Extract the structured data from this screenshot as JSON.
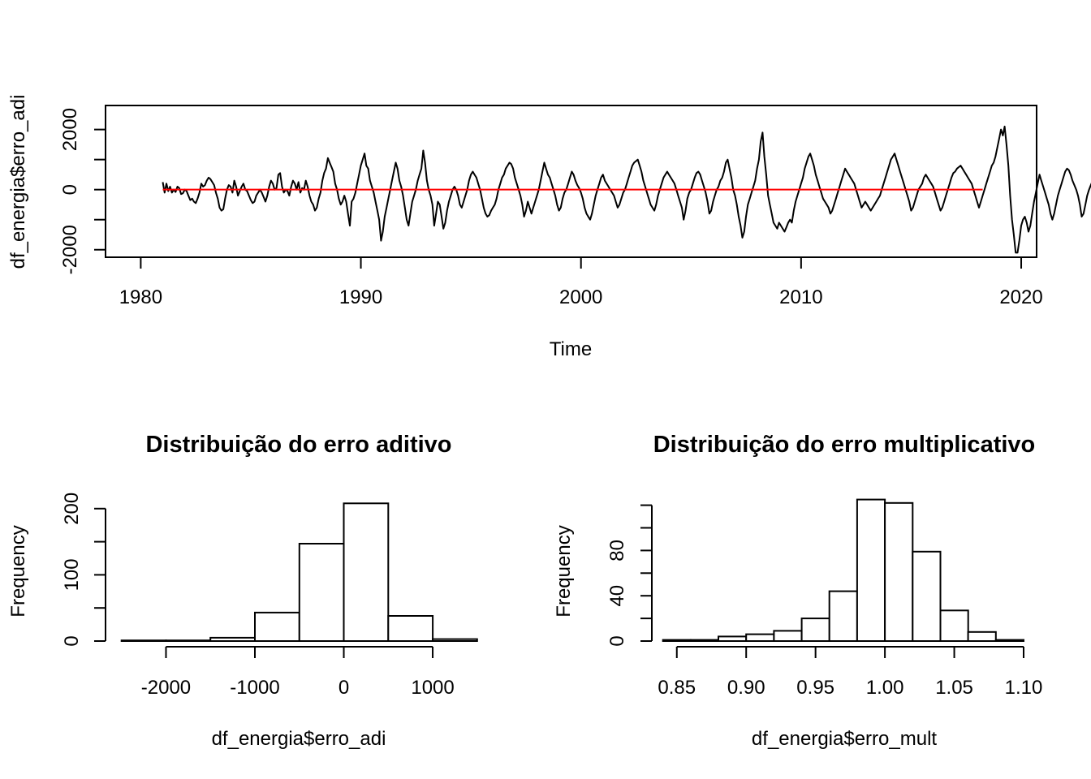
{
  "chart_data": [
    {
      "type": "line",
      "title": "",
      "xlabel": "Time",
      "ylabel": "df_energia$erro_adi",
      "xlim": [
        1978.4,
        2020.7
      ],
      "ylim": [
        -2250,
        2800
      ],
      "x_ticks": [
        1980,
        1990,
        2000,
        2010,
        2020
      ],
      "y_ticks": [
        -2000,
        -1000,
        0,
        1000,
        2000
      ],
      "y_tick_labels": [
        "-2000",
        "",
        "0",
        "",
        "2000"
      ],
      "grid": false,
      "legend": "none",
      "x_start": 1981.0,
      "x_step": 0.08333,
      "series": [
        {
          "color": "#000000",
          "values": [
            250,
            -100,
            200,
            -50,
            100,
            -100,
            0,
            -80,
            100,
            50,
            -150,
            -120,
            0,
            -50,
            -200,
            -350,
            -300,
            -400,
            -450,
            -300,
            -100,
            200,
            100,
            150,
            300,
            400,
            350,
            250,
            150,
            -100,
            -300,
            -600,
            -700,
            -650,
            -300,
            0,
            150,
            100,
            -100,
            300,
            100,
            -200,
            -50,
            100,
            200,
            0,
            -50,
            -200,
            -350,
            -450,
            -400,
            -200,
            -100,
            0,
            -100,
            -250,
            -400,
            -200,
            100,
            300,
            200,
            0,
            50,
            500,
            550,
            100,
            -100,
            0,
            -50,
            -200,
            100,
            300,
            200,
            0,
            250,
            -100,
            50,
            0,
            300,
            100,
            -200,
            -400,
            -500,
            -700,
            -600,
            -300,
            -100,
            300,
            550,
            700,
            1050,
            900,
            750,
            600,
            200,
            0,
            -300,
            -500,
            -400,
            -200,
            -400,
            -800,
            -1200,
            -400,
            -300,
            -100,
            200,
            500,
            800,
            1000,
            1200,
            800,
            700,
            300,
            100,
            -100,
            -400,
            -700,
            -1000,
            -1700,
            -1400,
            -900,
            -600,
            -300,
            0,
            300,
            600,
            900,
            700,
            300,
            100,
            -200,
            -600,
            -1000,
            -1200,
            -800,
            -400,
            -200,
            0,
            300,
            500,
            700,
            1300,
            900,
            300,
            0,
            -200,
            -500,
            -1200,
            -800,
            -400,
            -500,
            -900,
            -1300,
            -1100,
            -700,
            -400,
            -200,
            0,
            100,
            0,
            -200,
            -500,
            -600,
            -400,
            -200,
            0,
            300,
            500,
            600,
            500,
            400,
            200,
            0,
            -300,
            -600,
            -800,
            -900,
            -850,
            -700,
            -600,
            -500,
            -300,
            0,
            200,
            400,
            500,
            700,
            800,
            900,
            850,
            700,
            400,
            200,
            0,
            -200,
            -500,
            -900,
            -700,
            -400,
            -600,
            -800,
            -600,
            -400,
            -200,
            0,
            300,
            600,
            900,
            700,
            500,
            400,
            200,
            0,
            -200,
            -500,
            -700,
            -600,
            -300,
            -100,
            0,
            200,
            400,
            600,
            500,
            300,
            150,
            50,
            -100,
            -300,
            -600,
            -800,
            -900,
            -1000,
            -800,
            -500,
            -200,
            0,
            200,
            400,
            500,
            300,
            200,
            100,
            0,
            -100,
            -200,
            -400,
            -600,
            -500,
            -300,
            -100,
            0,
            200,
            400,
            600,
            800,
            900,
            950,
            1000,
            800,
            600,
            300,
            100,
            -100,
            -300,
            -500,
            -600,
            -700,
            -500,
            -200,
            0,
            200,
            400,
            500,
            600,
            500,
            400,
            300,
            200,
            0,
            -200,
            -400,
            -600,
            -1000,
            -700,
            -300,
            -100,
            0,
            200,
            400,
            550,
            600,
            500,
            300,
            100,
            -100,
            -400,
            -800,
            -700,
            -400,
            -200,
            0,
            100,
            300,
            400,
            600,
            900,
            1000,
            700,
            400,
            0,
            -200,
            -500,
            -900,
            -1200,
            -1600,
            -1400,
            -900,
            -500,
            -300,
            -100,
            100,
            300,
            700,
            1000,
            1600,
            1900,
            1100,
            500,
            -200,
            -500,
            -800,
            -1100,
            -1200,
            -1300,
            -1100,
            -1200,
            -1300,
            -1400,
            -1250,
            -1100,
            -1000,
            -1100,
            -700,
            -400,
            -200,
            0,
            200,
            400,
            700,
            900,
            1100,
            1200,
            1000,
            800,
            500,
            300,
            100,
            -100,
            -300,
            -400,
            -500,
            -600,
            -800,
            -700,
            -500,
            -300,
            -100,
            100,
            300,
            500,
            700,
            600,
            500,
            400,
            300,
            200,
            0,
            -200,
            -400,
            -600,
            -500,
            -400,
            -500,
            -600,
            -700,
            -600,
            -500,
            -400,
            -300,
            -200,
            0,
            200,
            400,
            600,
            800,
            1000,
            1100,
            1200,
            1000,
            800,
            600,
            400,
            200,
            0,
            -200,
            -400,
            -700,
            -600,
            -400,
            -200,
            0,
            100,
            200,
            400,
            500,
            400,
            300,
            200,
            100,
            -100,
            -300,
            -500,
            -700,
            -600,
            -400,
            -200,
            0,
            200,
            400,
            550,
            600,
            700,
            750,
            800,
            700,
            600,
            500,
            400,
            300,
            200,
            0,
            -200,
            -400,
            -600,
            -400,
            -200,
            0,
            200,
            400,
            600,
            800,
            900,
            1100,
            1400,
            1700,
            2000,
            1800,
            2100,
            1500,
            800,
            -200,
            -1000,
            -1500,
            -2100,
            -2100,
            -1700,
            -1200,
            -1000,
            -900,
            -1100,
            -1400,
            -1200,
            -800,
            -400,
            -100,
            200,
            500,
            300,
            100,
            -100,
            -300,
            -500,
            -800,
            -1000,
            -800,
            -500,
            -200,
            0,
            200,
            400,
            600,
            700,
            650,
            500,
            300,
            150,
            0,
            -200,
            -500,
            -900,
            -800,
            -500,
            -200,
            0,
            150,
            300,
            500,
            400,
            300,
            200,
            0,
            -300,
            -600,
            -500,
            -300,
            -100,
            200,
            400,
            600,
            800,
            500,
            300,
            100,
            -100,
            -300,
            -500,
            -700,
            -500,
            -300,
            -100,
            100,
            300,
            500,
            700,
            600,
            400,
            200,
            0,
            -200,
            -400,
            -600,
            -400,
            -200,
            0,
            200,
            400,
            500,
            300,
            100,
            -100,
            -400,
            -700,
            -900,
            -1300,
            -1700,
            -1400,
            -1000,
            -600,
            -300,
            0,
            200,
            400,
            600,
            500,
            300,
            100,
            -100,
            -300,
            -500,
            -400,
            -200,
            0,
            200,
            400,
            600,
            400,
            200,
            0,
            -200,
            -400,
            -600,
            -800,
            -600,
            -400,
            -200,
            0,
            200,
            400,
            300,
            200,
            100,
            0,
            -200,
            -400,
            -600,
            -800,
            -600,
            -300,
            0
          ]
        },
        {
          "color": "#ff0000",
          "x": [
            1981.0,
            2018.25
          ],
          "values": [
            0,
            0
          ]
        }
      ]
    },
    {
      "type": "bar",
      "title": "Distribuição do erro aditivo",
      "xlabel": "df_energia$erro_adi",
      "ylabel": "Frequency",
      "xlim": [
        -2680,
        1520
      ],
      "ylim": [
        0,
        212
      ],
      "x_ticks": [
        -2000,
        -1000,
        0,
        1000
      ],
      "y_ticks": [
        0,
        50,
        100,
        150,
        200
      ],
      "y_tick_labels": [
        "0",
        "",
        "100",
        "",
        "200"
      ],
      "bins": [
        [
          -2500,
          -2000
        ],
        [
          -2000,
          -1500
        ],
        [
          -1500,
          -1000
        ],
        [
          -1000,
          -500
        ],
        [
          -500,
          0
        ],
        [
          0,
          500
        ],
        [
          500,
          1000
        ],
        [
          1000,
          1500
        ]
      ],
      "values": [
        1,
        1,
        5,
        43,
        147,
        208,
        38,
        3
      ],
      "grid": false
    },
    {
      "type": "bar",
      "title": "Distribuição do erro multiplicativo",
      "xlabel": "df_energia$erro_mult",
      "ylabel": "Frequency",
      "xlim": [
        0.832,
        1.1
      ],
      "ylim": [
        0,
        124
      ],
      "x_ticks": [
        0.85,
        0.9,
        0.95,
        1.0,
        1.05,
        1.1
      ],
      "x_tick_labels": [
        "0.85",
        "0.90",
        "0.95",
        "1.00",
        "1.05",
        "1.10"
      ],
      "y_ticks": [
        0,
        20,
        40,
        60,
        80,
        100,
        120
      ],
      "y_tick_labels": [
        "0",
        "",
        "40",
        "",
        "80",
        "",
        ""
      ],
      "bins": [
        [
          0.84,
          0.86
        ],
        [
          0.86,
          0.88
        ],
        [
          0.88,
          0.9
        ],
        [
          0.9,
          0.92
        ],
        [
          0.92,
          0.94
        ],
        [
          0.94,
          0.96
        ],
        [
          0.96,
          0.98
        ],
        [
          0.98,
          1.0
        ],
        [
          1.0,
          1.02
        ],
        [
          1.02,
          1.04
        ],
        [
          1.04,
          1.06
        ],
        [
          1.06,
          1.08
        ],
        [
          1.08,
          1.1
        ]
      ],
      "values": [
        1,
        1,
        4,
        6,
        9,
        20,
        44,
        125,
        122,
        79,
        27,
        8,
        1
      ],
      "grid": false
    }
  ]
}
